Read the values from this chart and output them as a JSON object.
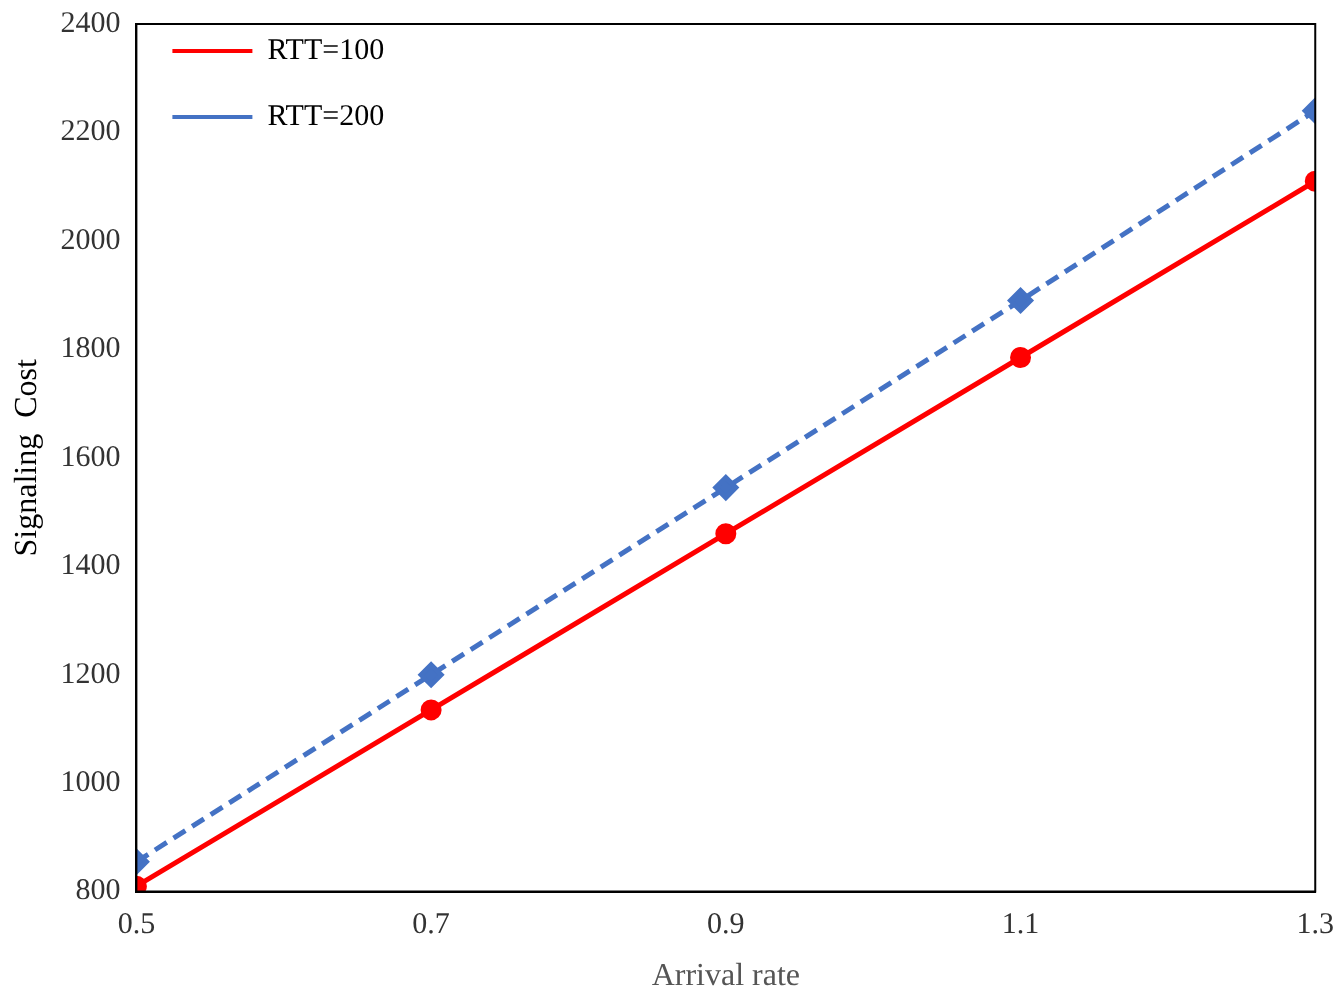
{
  "chart_data": {
    "type": "line",
    "xlabel": "Arrival rate",
    "ylabel": "Signaling  Cost",
    "x": [
      0.5,
      0.7,
      0.9,
      1.1,
      1.3
    ],
    "xlim": [
      0.5,
      1.3
    ],
    "xticks": [
      0.5,
      0.7,
      0.9,
      1.1,
      1.3
    ],
    "ylim": [
      800,
      2400
    ],
    "yticks": [
      800,
      1000,
      1200,
      1400,
      1600,
      1800,
      2000,
      2200,
      2400
    ],
    "grid": false,
    "legend": "top left",
    "series": [
      {
        "name": "RTT=100",
        "color": "#ff0000",
        "marker": "circle",
        "line_style": "solid",
        "values": [
          810,
          1135,
          1460,
          1785,
          2110
        ]
      },
      {
        "name": "RTT=200",
        "color": "#4472c4",
        "marker": "diamond",
        "line_style": "dashed",
        "values": [
          855,
          1200,
          1545,
          1890,
          2240
        ]
      }
    ]
  }
}
